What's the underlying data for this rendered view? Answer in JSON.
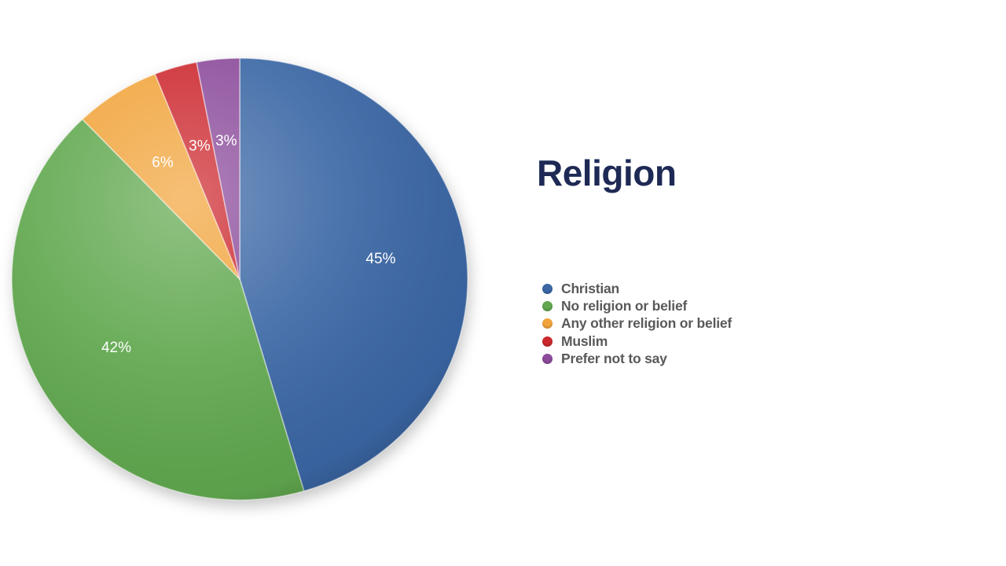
{
  "chart_data": {
    "type": "pie",
    "title": "Religion",
    "categories": [
      "Christian",
      "No religion or belief",
      "Any other religion or belief",
      "Muslim",
      "Prefer not to say"
    ],
    "values": [
      45,
      42,
      6,
      3,
      3
    ],
    "data_labels": [
      "45%",
      "42%",
      "6%",
      "3%",
      "3%"
    ],
    "colors": [
      "#3B67A5",
      "#61A84F",
      "#F1A43B",
      "#CC282E",
      "#8B4B9B"
    ],
    "start_angle_deg": 0,
    "direction": "clockwise",
    "legend_position": "right",
    "data_label_color": "#FFFFFF",
    "grid": false
  },
  "theme": {
    "background": "#FFFFFF",
    "title_color": "#1E2A55",
    "legend_text_color": "#595959"
  }
}
